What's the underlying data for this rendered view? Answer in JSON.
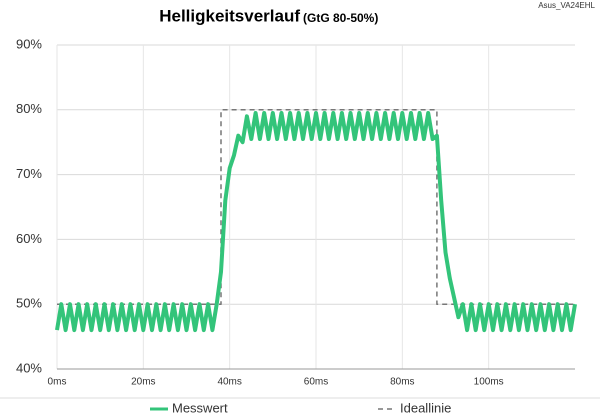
{
  "chart_data": {
    "type": "line",
    "title": "Helligkeitsverlauf",
    "subtitle": "(GtG 80-50%)",
    "corner_label": "Asus_VA24EHL",
    "x": [
      0,
      1,
      2,
      3,
      4,
      5,
      6,
      7,
      8,
      9,
      10,
      11,
      12,
      13,
      14,
      15,
      16,
      17,
      18,
      19,
      20,
      21,
      22,
      23,
      24,
      25,
      26,
      27,
      28,
      29,
      30,
      31,
      32,
      33,
      34,
      35,
      36,
      37,
      38,
      39,
      40,
      41,
      42,
      43,
      44,
      45,
      46,
      47,
      48,
      49,
      50,
      51,
      52,
      53,
      54,
      55,
      56,
      57,
      58,
      59,
      60,
      61,
      62,
      63,
      64,
      65,
      66,
      67,
      68,
      69,
      70,
      71,
      72,
      73,
      74,
      75,
      76,
      77,
      78,
      79,
      80,
      81,
      82,
      83,
      84,
      85,
      86,
      87,
      88,
      89,
      90,
      91,
      92,
      93,
      94,
      95,
      96,
      97,
      98,
      99,
      100,
      101,
      102,
      103,
      104,
      105,
      106,
      107,
      108,
      109,
      110,
      111,
      112,
      113,
      114,
      115,
      116,
      117,
      118,
      119,
      120
    ],
    "series": [
      {
        "name": "Messwert",
        "color": "#33c47a",
        "style": "solid",
        "values": [
          46,
          50,
          46,
          50,
          46,
          50,
          46,
          50,
          46,
          50,
          46,
          50,
          46,
          50,
          46,
          50,
          46,
          50,
          46,
          50,
          46,
          50,
          46,
          50,
          46,
          50,
          46,
          50,
          46,
          50,
          46,
          50,
          46,
          50,
          46,
          50,
          46,
          50,
          55,
          66,
          71,
          73,
          76,
          75,
          79,
          75.5,
          79.5,
          75.5,
          79.5,
          75.5,
          79.5,
          75.5,
          79.5,
          75.5,
          79.5,
          75.5,
          79.5,
          75.5,
          79.5,
          75.5,
          79.5,
          75.5,
          79.5,
          75.5,
          79.5,
          75.5,
          79.5,
          75.5,
          79.5,
          75.5,
          79.5,
          75.5,
          79.5,
          75.5,
          79.5,
          75.5,
          79.5,
          75.5,
          79.5,
          75.5,
          79.5,
          75.5,
          79.5,
          75.5,
          79.5,
          75.5,
          79.5,
          75.5,
          76,
          66,
          58,
          54,
          51,
          48,
          50,
          46,
          50,
          46,
          50,
          46,
          50,
          46,
          50,
          46,
          50,
          46,
          50,
          46,
          50,
          46,
          50,
          46,
          50,
          46,
          50,
          46,
          50,
          46,
          50,
          46,
          50
        ]
      },
      {
        "name": "Ideallinie",
        "color": "#777777",
        "style": "dashed",
        "x": [
          0,
          38,
          38,
          88,
          88,
          120
        ],
        "values": [
          50,
          50,
          80,
          80,
          50,
          50
        ]
      }
    ],
    "xlim": [
      0,
      120
    ],
    "ylim": [
      40,
      90
    ],
    "xticks": [
      {
        "value": 0,
        "label": "0ms"
      },
      {
        "value": 20,
        "label": "20ms"
      },
      {
        "value": 40,
        "label": "40ms"
      },
      {
        "value": 60,
        "label": "60ms"
      },
      {
        "value": 80,
        "label": "80ms"
      },
      {
        "value": 100,
        "label": "100ms"
      }
    ],
    "yticks": [
      {
        "value": 40,
        "label": "40%"
      },
      {
        "value": 50,
        "label": "50%"
      },
      {
        "value": 60,
        "label": "60%"
      },
      {
        "value": 70,
        "label": "70%"
      },
      {
        "value": 80,
        "label": "80%"
      },
      {
        "value": 90,
        "label": "90%"
      }
    ],
    "grid": true,
    "legend": "bottom"
  }
}
